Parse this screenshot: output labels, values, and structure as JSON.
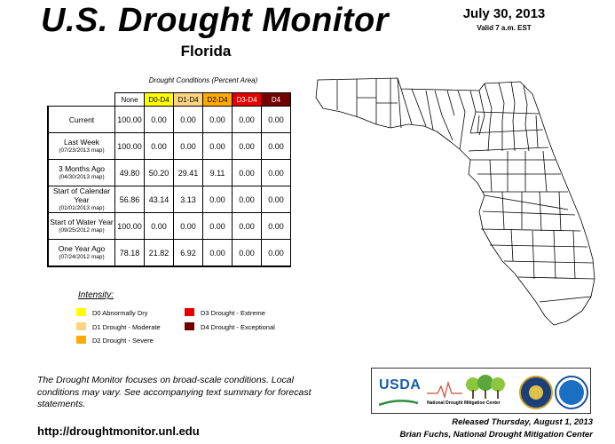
{
  "header": {
    "title": "U.S. Drought Monitor",
    "state": "Florida",
    "date": "July 30, 2013",
    "valid": "Valid 7 a.m. EST"
  },
  "table": {
    "caption": "Drought Conditions (Percent Area)",
    "columns": [
      "None",
      "D0-D4",
      "D1-D4",
      "D2-D4",
      "D3-D4",
      "D4"
    ],
    "column_colors": [
      "#ffffff",
      "#ffff00",
      "#fcd37f",
      "#ffaa00",
      "#e60000",
      "#730000"
    ],
    "rows": [
      {
        "label": "Current",
        "sub": "",
        "values": [
          "100.00",
          "0.00",
          "0.00",
          "0.00",
          "0.00",
          "0.00"
        ]
      },
      {
        "label": "Last Week",
        "sub": "(07/23/2013 map)",
        "values": [
          "100.00",
          "0.00",
          "0.00",
          "0.00",
          "0.00",
          "0.00"
        ]
      },
      {
        "label": "3 Months Ago",
        "sub": "(04/30/2013 map)",
        "values": [
          "49.80",
          "50.20",
          "29.41",
          "9.11",
          "0.00",
          "0.00"
        ]
      },
      {
        "label": "Start of Calendar Year",
        "sub": "(01/01/2013 map)",
        "values": [
          "56.86",
          "43.14",
          "3.13",
          "0.00",
          "0.00",
          "0.00"
        ]
      },
      {
        "label": "Start of Water Year",
        "sub": "(09/25/2012 map)",
        "values": [
          "100.00",
          "0.00",
          "0.00",
          "0.00",
          "0.00",
          "0.00"
        ]
      },
      {
        "label": "One Year Ago",
        "sub": "(07/24/2012 map)",
        "values": [
          "78.18",
          "21.82",
          "6.92",
          "0.00",
          "0.00",
          "0.00"
        ]
      }
    ]
  },
  "legend": {
    "title": "Intensity:",
    "items": [
      {
        "label": "D0 Abnormally Dry",
        "color": "#ffff00"
      },
      {
        "label": "D1 Drought - Moderate",
        "color": "#fcd37f"
      },
      {
        "label": "D2 Drought - Severe",
        "color": "#ffaa00"
      },
      {
        "label": "D3 Drought - Extreme",
        "color": "#e60000"
      },
      {
        "label": "D4 Drought - Exceptional",
        "color": "#730000"
      }
    ]
  },
  "footer": {
    "note": "The Drought Monitor focuses on broad-scale conditions. Local conditions may vary. See accompanying text summary for forecast statements.",
    "url": "http://droughtmonitor.unl.edu",
    "released": "Released Thursday, August 1, 2013",
    "author": "Brian Fuchs, National Drought Mitigation Center"
  },
  "logos": {
    "usda": "USDA",
    "ndmc": "National Drought Mitigation Center",
    "doc": "Department of Commerce seal",
    "noaa": "NOAA"
  }
}
